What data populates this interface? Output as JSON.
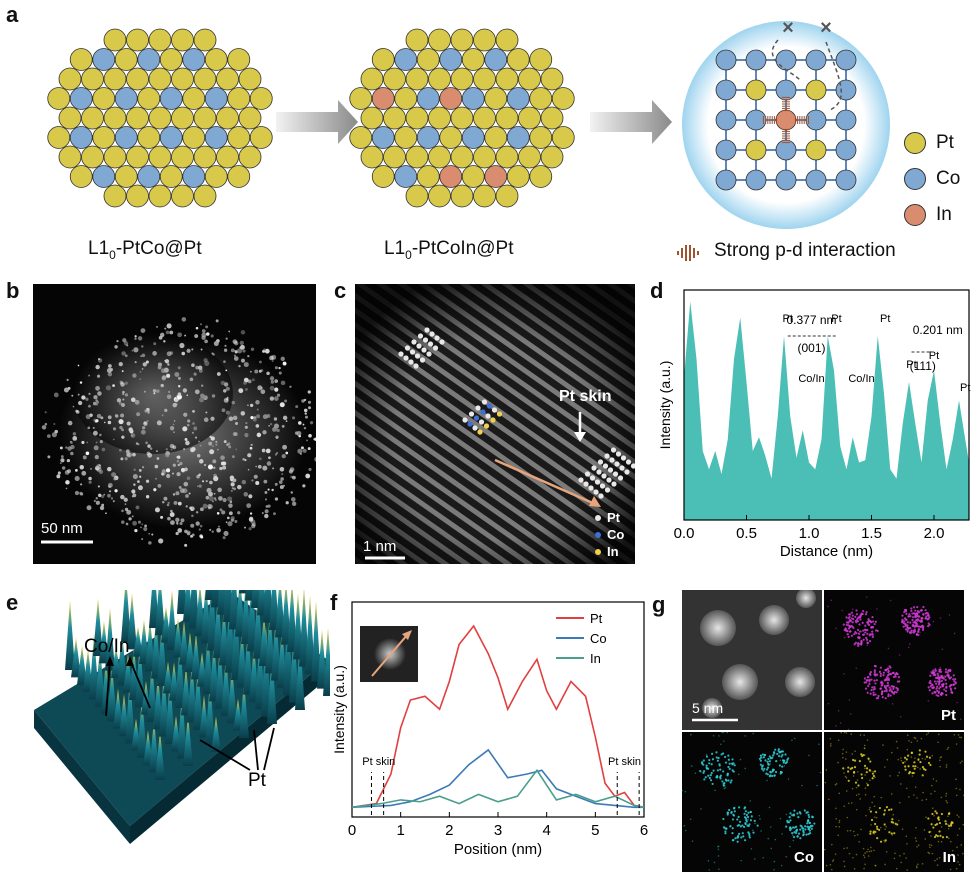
{
  "panels": {
    "a": "a",
    "b": "b",
    "c": "c",
    "d": "d",
    "e": "e",
    "f": "f",
    "g": "g"
  },
  "panel_a": {
    "label1_main": "L1",
    "label1_sub": "0",
    "label1_rest": "-PtCo@Pt",
    "label2_main": "L1",
    "label2_sub": "0",
    "label2_rest": "-PtCoIn@Pt",
    "legend": [
      {
        "name": "Pt",
        "color": "#d8c94a"
      },
      {
        "name": "Co",
        "color": "#7fa9d2"
      },
      {
        "name": "In",
        "color": "#d98d6e"
      }
    ],
    "interaction_label": "Strong p-d interaction",
    "cross_mark": "×"
  },
  "panel_b": {
    "scale": "50 nm"
  },
  "panel_c": {
    "scale": "1 nm",
    "skin_label": "Pt skin",
    "legend": [
      {
        "name": "Pt",
        "color": "#e8e8e8"
      },
      {
        "name": "Co",
        "color": "#3d6fd8"
      },
      {
        "name": "In",
        "color": "#f2d14a"
      }
    ]
  },
  "panel_d": {
    "ylabel": "Intensity (a.u.)",
    "xlabel": "Distance (nm)",
    "xticks": [
      "0.0",
      "0.5",
      "1.0",
      "1.5",
      "2.0"
    ],
    "annot_001_value": "0.377 nm",
    "annot_001_plane": "(001)",
    "annot_111_value": "0.201 nm",
    "annot_111_plane": "(111)",
    "peak_labels": [
      "Pt",
      "Pt",
      "Pt",
      "Pt",
      "Pt",
      "Pt",
      "Co/In",
      "Co/In"
    ],
    "fill_color": "#4bbfb5"
  },
  "panel_e": {
    "top_label": "Co/In",
    "bottom_label": "Pt"
  },
  "panel_f": {
    "ylabel": "Intensity (a.u.)",
    "xlabel": "Position (nm)",
    "xticks": [
      "0",
      "1",
      "2",
      "3",
      "4",
      "5",
      "6"
    ],
    "skin_left": "Pt skin",
    "skin_right": "Pt skin"
  },
  "panel_g": {
    "scale": "5 nm",
    "pt": "Pt",
    "co": "Co",
    "in": "In"
  },
  "chart_data": [
    {
      "type": "area",
      "panel": "d",
      "xlabel": "Distance (nm)",
      "ylabel": "Intensity (a.u.)",
      "xlim": [
        0,
        2.28
      ],
      "series": [
        {
          "x": [
            0.0,
            0.05,
            0.1,
            0.15,
            0.2,
            0.25,
            0.3,
            0.35,
            0.4,
            0.45,
            0.5,
            0.55,
            0.6,
            0.65,
            0.7,
            0.75,
            0.8,
            0.85,
            0.9,
            0.95,
            1.0,
            1.05,
            1.1,
            1.15,
            1.2,
            1.25,
            1.3,
            1.35,
            1.4,
            1.45,
            1.5,
            1.55,
            1.6,
            1.65,
            1.7,
            1.75,
            1.8,
            1.85,
            1.9,
            1.95,
            2.0,
            2.05,
            2.1,
            2.15,
            2.2,
            2.25,
            2.28
          ],
          "y": [
            0.62,
            0.95,
            0.7,
            0.3,
            0.22,
            0.3,
            0.2,
            0.35,
            0.7,
            0.88,
            0.6,
            0.3,
            0.36,
            0.28,
            0.18,
            0.45,
            0.8,
            0.45,
            0.27,
            0.39,
            0.25,
            0.22,
            0.35,
            0.8,
            0.65,
            0.32,
            0.22,
            0.36,
            0.25,
            0.26,
            0.45,
            0.8,
            0.55,
            0.22,
            0.18,
            0.42,
            0.6,
            0.42,
            0.25,
            0.52,
            0.65,
            0.42,
            0.22,
            0.35,
            0.52,
            0.35,
            0.25
          ]
        }
      ]
    },
    {
      "type": "line",
      "panel": "f",
      "xlabel": "Position (nm)",
      "ylabel": "Intensity (a.u.)",
      "xlim": [
        0,
        6
      ],
      "legend": "top-right",
      "series": [
        {
          "name": "Pt",
          "color": "#e04040",
          "x": [
            0,
            0.5,
            0.8,
            1.0,
            1.2,
            1.5,
            1.8,
            2.0,
            2.2,
            2.5,
            2.8,
            3.0,
            3.2,
            3.5,
            3.8,
            4.0,
            4.2,
            4.5,
            4.8,
            5.0,
            5.2,
            5.4,
            5.6,
            5.8,
            6.0
          ],
          "y": [
            0.02,
            0.04,
            0.2,
            0.45,
            0.6,
            0.62,
            0.55,
            0.7,
            0.9,
            1.0,
            0.85,
            0.72,
            0.55,
            0.7,
            0.82,
            0.65,
            0.55,
            0.7,
            0.62,
            0.4,
            0.15,
            0.08,
            0.1,
            0.03,
            0.02
          ]
        },
        {
          "name": "Co",
          "color": "#3d7ab8",
          "x": [
            0,
            0.8,
            1.2,
            1.6,
            2.0,
            2.4,
            2.8,
            3.2,
            3.6,
            3.9,
            4.2,
            4.6,
            5.0,
            5.4,
            5.8,
            6.0
          ],
          "y": [
            0.02,
            0.03,
            0.05,
            0.09,
            0.14,
            0.25,
            0.33,
            0.18,
            0.2,
            0.22,
            0.12,
            0.08,
            0.04,
            0.03,
            0.02,
            0.02
          ]
        },
        {
          "name": "In",
          "color": "#4a9e8c",
          "x": [
            0,
            0.6,
            1.0,
            1.4,
            1.8,
            2.2,
            2.6,
            3.0,
            3.4,
            3.8,
            4.2,
            4.6,
            5.0,
            5.4,
            5.8,
            6.0
          ],
          "y": [
            0.02,
            0.04,
            0.06,
            0.05,
            0.08,
            0.04,
            0.09,
            0.05,
            0.08,
            0.22,
            0.06,
            0.09,
            0.05,
            0.08,
            0.03,
            0.02
          ]
        }
      ]
    }
  ]
}
